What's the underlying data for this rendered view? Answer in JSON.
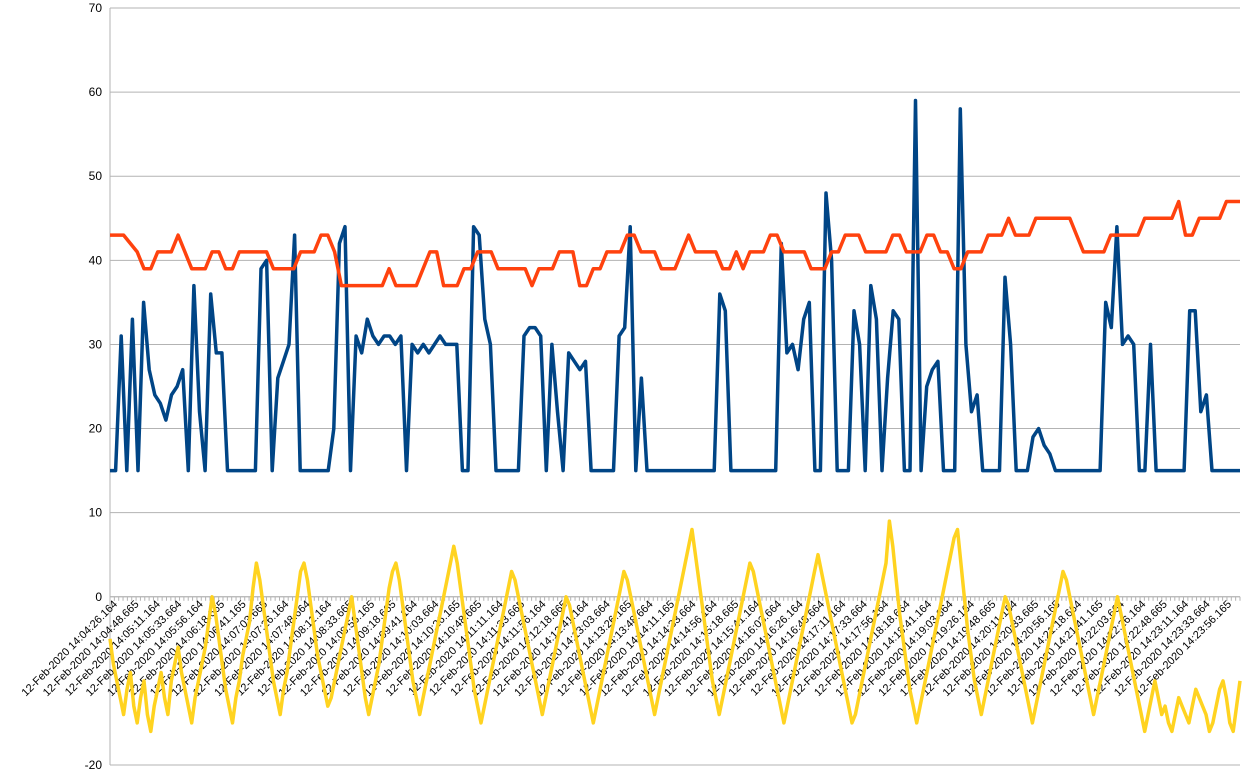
{
  "chart_data": {
    "type": "line",
    "title": "",
    "xlabel": "",
    "ylabel": "",
    "ylim": [
      -20,
      70
    ],
    "yticks": [
      "70",
      "60",
      "50",
      "40",
      "30",
      "20",
      "10",
      "0",
      "-20"
    ],
    "grid": true,
    "legend": "none",
    "x_tick_labels": [
      "12-Feb-2020 14:04:26.164",
      "12-Feb-2020 14:04:48.665",
      "12-Feb-2020 14:05:11.164",
      "12-Feb-2020 14:05:33.664",
      "12-Feb-2020 14:05:56.164",
      "12-Feb-2020 14:06:18.665",
      "12-Feb-2020 14:06:41.165",
      "12-Feb-2020 14:07:03.665",
      "12-Feb-2020 14:07:26.164",
      "12-Feb-2020 14:07:48.664",
      "12-Feb-2020 14:08:11.164",
      "12-Feb-2020 14:08:33.665",
      "12-Feb-2020 14:08:56.165",
      "12-Feb-2020 14:09:18.665",
      "12-Feb-2020 14:09:41.164",
      "12-Feb-2020 14:10:03.664",
      "12-Feb-2020 14:10:26.165",
      "12-Feb-2020 14:10:48.665",
      "12-Feb-2020 14:11:11.164",
      "12-Feb-2020 14:11:33.665",
      "12-Feb-2020 14:11:56.164",
      "12-Feb-2020 14:12:18.665",
      "12-Feb-2020 14:12:41.164",
      "12-Feb-2020 14:13:03.664",
      "12-Feb-2020 14:13:26.165",
      "12-Feb-2020 14:13:48.664",
      "12-Feb-2020 14:14:11.165",
      "12-Feb-2020 14:14:33.664",
      "12-Feb-2020 14:14:56.164",
      "12-Feb-2020 14:15:18.665",
      "12-Feb-2020 14:15:41.164",
      "12-Feb-2020 14:16:03.664",
      "12-Feb-2020 14:16:26.164",
      "12-Feb-2020 14:16:48.664",
      "12-Feb-2020 14:17:11.164",
      "12-Feb-2020 14:17:33.664",
      "12-Feb-2020 14:17:56.164",
      "12-Feb-2020 14:18:18.664",
      "12-Feb-2020 14:18:41.164",
      "12-Feb-2020 14:19:03.664",
      "12-Feb-2020 14:19:26.164",
      "12-Feb-2020 14:19:48.665",
      "12-Feb-2020 14:20:11.164",
      "12-Feb-2020 14:20:33.665",
      "12-Feb-2020 14:20:56.165",
      "12-Feb-2020 14:21:18.664",
      "12-Feb-2020 14:21:41.165",
      "12-Feb-2020 14:22:03.664",
      "12-Feb-2020 14:22:26.164",
      "12-Feb-2020 14:22:48.665",
      "12-Feb-2020 14:23:11.164",
      "12-Feb-2020 14:23:33.664",
      "12-Feb-2020 14:23:56.165"
    ],
    "series": [
      {
        "name": "",
        "color": "#004586",
        "values": [
          15,
          15,
          31,
          15,
          33,
          15,
          35,
          27,
          24,
          23,
          21,
          24,
          25,
          27,
          15,
          37,
          22,
          15,
          36,
          29,
          29,
          15,
          15,
          15,
          15,
          15,
          15,
          39,
          40,
          15,
          26,
          28,
          30,
          43,
          15,
          15,
          15,
          15,
          15,
          15,
          20,
          42,
          44,
          15,
          31,
          29,
          33,
          31,
          30,
          31,
          31,
          30,
          31,
          15,
          30,
          29,
          30,
          29,
          30,
          31,
          30,
          30,
          30,
          15,
          15,
          44,
          43,
          33,
          30,
          15,
          15,
          15,
          15,
          15,
          31,
          32,
          32,
          31,
          15,
          30,
          22,
          15,
          29,
          28,
          27,
          28,
          15,
          15,
          15,
          15,
          15,
          31,
          32,
          44,
          15,
          26,
          15,
          15,
          15,
          15,
          15,
          15,
          15,
          15,
          15,
          15,
          15,
          15,
          15,
          36,
          34,
          15,
          15,
          15,
          15,
          15,
          15,
          15,
          15,
          15,
          42,
          29,
          30,
          27,
          33,
          35,
          15,
          15,
          48,
          40,
          15,
          15,
          15,
          34,
          30,
          15,
          37,
          33,
          15,
          26,
          34,
          33,
          15,
          15,
          59,
          15,
          25,
          27,
          28,
          15,
          15,
          15,
          58,
          30,
          22,
          24,
          15,
          15,
          15,
          15,
          38,
          30,
          15,
          15,
          15,
          19,
          20,
          18,
          17,
          15,
          15,
          15,
          15,
          15,
          15,
          15,
          15,
          15,
          35,
          32,
          44,
          30,
          31,
          30,
          15,
          15,
          30,
          15,
          15,
          15,
          15,
          15,
          15,
          34,
          34,
          22,
          24,
          15,
          15,
          15,
          15,
          15,
          15
        ]
      },
      {
        "name": "",
        "color": "#ff420e",
        "values": [
          43,
          43,
          43,
          42,
          41,
          39,
          39,
          41,
          41,
          41,
          43,
          41,
          39,
          39,
          39,
          41,
          41,
          39,
          39,
          41,
          41,
          41,
          41,
          41,
          39,
          39,
          39,
          39,
          41,
          41,
          41,
          43,
          43,
          41,
          37,
          37,
          37,
          37,
          37,
          37,
          37,
          39,
          37,
          37,
          37,
          37,
          39,
          41,
          41,
          37,
          37,
          37,
          39,
          39,
          41,
          41,
          41,
          39,
          39,
          39,
          39,
          39,
          37,
          39,
          39,
          39,
          41,
          41,
          41,
          37,
          37,
          39,
          39,
          41,
          41,
          41,
          43,
          43,
          41,
          41,
          41,
          39,
          39,
          39,
          41,
          43,
          41,
          41,
          41,
          41,
          39,
          39,
          41,
          39,
          41,
          41,
          41,
          43,
          43,
          41,
          41,
          41,
          41,
          39,
          39,
          39,
          41,
          41,
          43,
          43,
          43,
          41,
          41,
          41,
          41,
          43,
          43,
          41,
          41,
          41,
          43,
          43,
          41,
          41,
          39,
          39,
          41,
          41,
          41,
          43,
          43,
          43,
          45,
          43,
          43,
          43,
          45,
          45,
          45,
          45,
          45,
          45,
          43,
          41,
          41,
          41,
          41,
          43,
          43,
          43,
          43,
          43,
          45,
          45,
          45,
          45,
          45,
          47,
          43,
          43,
          45,
          45,
          45,
          45,
          47,
          47,
          47
        ]
      },
      {
        "name": "",
        "color": "#ffd320",
        "values": [
          -5,
          -8,
          -10,
          -12,
          -14,
          -11,
          -9,
          -13,
          -15,
          -12,
          -10,
          -14,
          -16,
          -13,
          -11,
          -9,
          -12,
          -14,
          -10,
          -8,
          -6,
          -9,
          -11,
          -13,
          -15,
          -12,
          -10,
          -8,
          -6,
          -3,
          0,
          -2,
          -5,
          -8,
          -11,
          -13,
          -15,
          -12,
          -10,
          -7,
          -5,
          -3,
          1,
          4,
          2,
          -1,
          -4,
          -7,
          -10,
          -12,
          -14,
          -11,
          -9,
          -6,
          -3,
          0,
          3,
          4,
          2,
          -1,
          -4,
          -7,
          -9,
          -11,
          -13,
          -12,
          -10,
          -8,
          -6,
          -4,
          -2,
          0,
          -3,
          -6,
          -9,
          -12,
          -14,
          -12,
          -10,
          -8,
          -5,
          -2,
          1,
          3,
          4,
          2,
          -1,
          -4,
          -7,
          -10,
          -12,
          -14,
          -12,
          -10,
          -8,
          -6,
          -4,
          -2,
          0,
          2,
          4,
          6,
          4,
          1,
          -2,
          -5,
          -8,
          -11,
          -13,
          -15,
          -13,
          -11,
          -9,
          -7,
          -5,
          -3,
          -1,
          1,
          3,
          2,
          0,
          -2,
          -4,
          -6,
          -8,
          -10,
          -12,
          -14,
          -12,
          -10,
          -8,
          -6,
          -4,
          -2,
          0,
          -1,
          -3,
          -5,
          -7,
          -9,
          -11,
          -13,
          -15,
          -13,
          -11,
          -9,
          -7,
          -5,
          -3,
          -1,
          1,
          3,
          2,
          0,
          -2,
          -4,
          -6,
          -8,
          -10,
          -12,
          -14,
          -12,
          -10,
          -8,
          -6,
          -4,
          -2,
          0,
          2,
          4,
          6,
          8,
          5,
          2,
          -1,
          -4,
          -7,
          -10,
          -12,
          -14,
          -12,
          -10,
          -8,
          -6,
          -4,
          -2,
          0,
          2,
          4,
          3,
          1,
          -1,
          -3,
          -5,
          -7,
          -9,
          -11,
          -13,
          -15,
          -13,
          -11,
          -9,
          -7,
          -5,
          -3,
          -1,
          1,
          3,
          5,
          3,
          1,
          -1,
          -3,
          -5,
          -7,
          -9,
          -11,
          -13,
          -15,
          -14,
          -12,
          -10,
          -8,
          -6,
          -4,
          -2,
          0,
          2,
          4,
          9,
          6,
          2,
          -2,
          -5,
          -8,
          -11,
          -13,
          -15,
          -13,
          -11,
          -9,
          -7,
          -5,
          -3,
          -1,
          1,
          3,
          5,
          7,
          8,
          4,
          0,
          -4,
          -7,
          -10,
          -12,
          -14,
          -12,
          -10,
          -8,
          -6,
          -4,
          -2,
          0,
          -1,
          -3,
          -5,
          -7,
          -9,
          -11,
          -13,
          -15,
          -13,
          -11,
          -9,
          -7,
          -5,
          -3,
          -1,
          1,
          3,
          2,
          0,
          -2,
          -4,
          -6,
          -8,
          -10,
          -12,
          -14,
          -12,
          -10,
          -8,
          -6,
          -4,
          -2,
          0,
          -2,
          -4,
          -6,
          -8,
          -10,
          -12,
          -14,
          -16,
          -14,
          -12,
          -10,
          -12,
          -14,
          -13,
          -15,
          -16,
          -14,
          -12,
          -13,
          -14,
          -15,
          -13,
          -11,
          -12,
          -13,
          -14,
          -16,
          -15,
          -13,
          -11,
          -10,
          -12,
          -15,
          -16,
          -13,
          -10
        ]
      }
    ]
  }
}
